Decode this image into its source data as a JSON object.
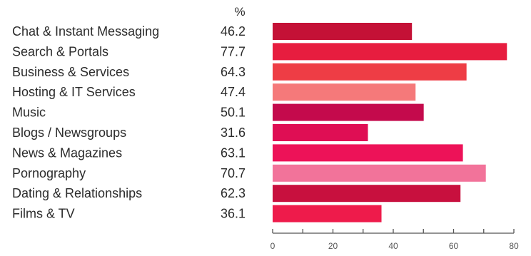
{
  "chart_data": {
    "type": "bar",
    "orientation": "horizontal",
    "unit": "%",
    "categories": [
      "Chat & Instant Messaging",
      "Search & Portals",
      "Business & Services",
      "Hosting & IT Services",
      "Music",
      "Blogs / Newsgroups",
      "News & Magazines",
      "Pornography",
      "Dating & Relationships",
      "Films & TV"
    ],
    "values": [
      46.2,
      77.7,
      64.3,
      47.4,
      50.1,
      31.6,
      63.1,
      70.7,
      62.3,
      36.1
    ],
    "value_labels": [
      "46.2",
      "77.7",
      "64.3",
      "47.4",
      "50.1",
      "31.6",
      "63.1",
      "70.7",
      "62.3",
      "36.1"
    ],
    "bar_colors": [
      "#c41136",
      "#e71d3f",
      "#ee3d45",
      "#f5797a",
      "#c40a4c",
      "#df0e54",
      "#ed1258",
      "#f2739a",
      "#c8103e",
      "#ee1b4b"
    ],
    "xlim": [
      0,
      80
    ],
    "xticks": [
      0,
      20,
      40,
      60,
      80
    ],
    "xtick_labels": [
      "0",
      "20",
      "40",
      "60",
      "80"
    ],
    "grid": false,
    "legend": "none"
  }
}
